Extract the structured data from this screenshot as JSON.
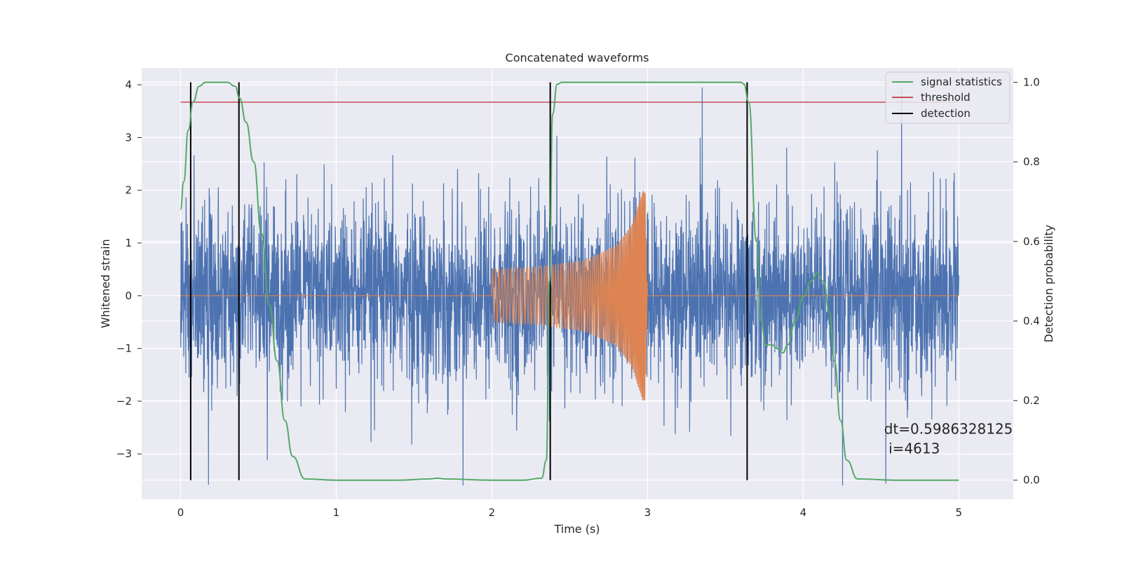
{
  "chart_data": {
    "type": "line",
    "title": "Concatenated waveforms",
    "xlabel": "Time (s)",
    "ylabel": "Whitened strain",
    "y2label": "Detection probability",
    "xlim": [
      -0.25,
      5.35
    ],
    "ylim": [
      -3.86,
      4.32
    ],
    "y2lim": [
      -0.048,
      1.036
    ],
    "xticks": [
      "0",
      "1",
      "2",
      "3",
      "4",
      "5"
    ],
    "yticks": [
      "−3",
      "−2",
      "−1",
      "0",
      "1",
      "2",
      "3",
      "4"
    ],
    "y2ticks": [
      "0.0",
      "0.2",
      "0.4",
      "0.6",
      "0.8",
      "1.0"
    ],
    "grid": true,
    "legend_position": "top-right",
    "legend": [
      {
        "name": "signal statistics",
        "color": "#55a868"
      },
      {
        "name": "threshold",
        "color": "#c44e52"
      },
      {
        "name": "detection",
        "color": "#000000"
      }
    ],
    "series": [
      {
        "name": "whitened strain (noise)",
        "axis": "left",
        "color": "#4c72b0",
        "description": "Gaussian-like noise on 0–5 s, amplitude roughly ±2.5 with peaks up to ~3.9",
        "x_range": [
          0,
          5
        ],
        "approx_std": 0.85
      },
      {
        "name": "injected waveform",
        "axis": "left",
        "color": "#dd8452",
        "description": "chirp signal from 2.0 s to 3.0 s, envelope growing from ~0.5 to ~2.0",
        "x_range": [
          2.0,
          3.0
        ],
        "envelope": [
          [
            2.0,
            0.5
          ],
          [
            2.3,
            0.55
          ],
          [
            2.6,
            0.68
          ],
          [
            2.8,
            0.95
          ],
          [
            2.9,
            1.35
          ],
          [
            2.97,
            2.0
          ]
        ]
      },
      {
        "name": "signal statistics",
        "axis": "right",
        "color": "#55a868",
        "x": [
          0,
          0.02,
          0.05,
          0.08,
          0.12,
          0.16,
          0.2,
          0.25,
          0.3,
          0.35,
          0.38,
          0.42,
          0.47,
          0.52,
          0.57,
          0.62,
          0.67,
          0.72,
          0.8,
          1.0,
          1.4,
          1.6,
          1.65,
          1.7,
          2.0,
          2.2,
          2.32,
          2.35,
          2.37,
          2.39,
          2.42,
          2.45,
          2.6,
          3.0,
          3.4,
          3.6,
          3.62,
          3.65,
          3.7,
          3.73,
          3.76,
          3.8,
          3.84,
          3.87,
          3.9,
          3.95,
          4.0,
          4.05,
          4.09,
          4.13,
          4.17,
          4.2,
          4.24,
          4.28,
          4.35,
          4.6,
          5.0
        ],
        "y": [
          0.68,
          0.75,
          0.88,
          0.95,
          0.99,
          1.0,
          1.0,
          1.0,
          1.0,
          0.99,
          0.96,
          0.9,
          0.8,
          0.62,
          0.44,
          0.3,
          0.15,
          0.06,
          0.003,
          0.0,
          0.0,
          0.003,
          0.005,
          0.003,
          0.0,
          0.0,
          0.005,
          0.05,
          0.5,
          0.92,
          0.995,
          1.0,
          1.0,
          1.0,
          1.0,
          1.0,
          0.995,
          0.95,
          0.6,
          0.4,
          0.34,
          0.34,
          0.33,
          0.32,
          0.34,
          0.4,
          0.46,
          0.5,
          0.52,
          0.5,
          0.42,
          0.3,
          0.15,
          0.05,
          0.003,
          0.0,
          0.0
        ]
      },
      {
        "name": "threshold",
        "axis": "right",
        "color": "#c44e52",
        "x": [
          0,
          5
        ],
        "y": [
          0.95,
          0.95
        ]
      },
      {
        "name": "detection",
        "axis": "right",
        "color": "#000000",
        "type": "vlines",
        "x": [
          0.065,
          0.375,
          2.375,
          3.64
        ],
        "ymin": 0.0,
        "ymax": 1.0
      }
    ],
    "annotation": {
      "line1": "dt=0.5986328125",
      "line2": " i=4613",
      "x": 4.52,
      "y": -2.62
    }
  }
}
